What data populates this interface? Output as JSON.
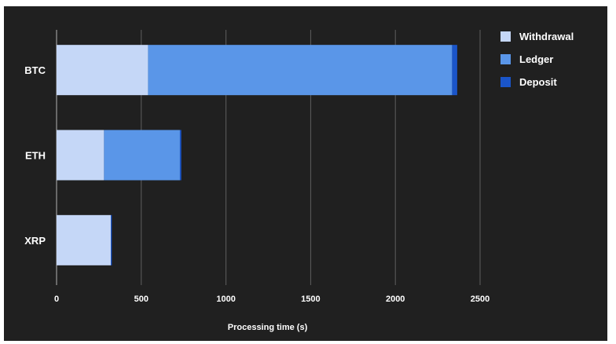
{
  "chart_data": {
    "type": "bar",
    "orientation": "horizontal",
    "stacked": true,
    "categories": [
      "BTC",
      "ETH",
      "XRP"
    ],
    "series": [
      {
        "name": "Withdrawal",
        "values": [
          540,
          280,
          320
        ],
        "color": "#c5d7f7"
      },
      {
        "name": "Ledger",
        "values": [
          1795,
          448,
          0
        ],
        "color": "#5a96e8"
      },
      {
        "name": "Deposit",
        "values": [
          30,
          8,
          6
        ],
        "color": "#1a55c9"
      }
    ],
    "xlabel": "Processing time (s)",
    "ylabel": "",
    "xlim": [
      0,
      2500
    ],
    "xticks": [
      0,
      500,
      1000,
      1500,
      2000,
      2500
    ],
    "grid": true,
    "legend_position": "top-right",
    "background": "#202020",
    "gridline_color": "#5e5e5e"
  }
}
